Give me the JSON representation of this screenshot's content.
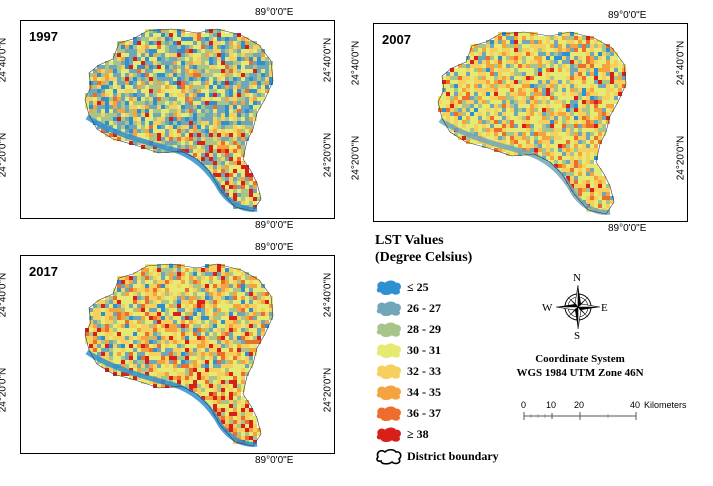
{
  "maps": [
    {
      "year": "1997",
      "lon_label": "89°0'0\"E",
      "lat_label_top": "24°40'0\"N",
      "lat_label_bottom": "24°20'0\"N"
    },
    {
      "year": "2007",
      "lon_label": "89°0'0\"E",
      "lat_label_top": "24°40'0\"N",
      "lat_label_bottom": "24°20'0\"N"
    },
    {
      "year": "2017",
      "lon_label": "89°0'0\"E",
      "lat_label_top": "24°40'0\"N",
      "lat_label_bottom": "24°20'0\"N"
    }
  ],
  "legend": {
    "title_line1": "LST Values",
    "title_line2": "(Degree Celsius)",
    "items": [
      {
        "label": "≤ 25",
        "color": "#2e8fd1"
      },
      {
        "label": "26 - 27",
        "color": "#6fa6b8"
      },
      {
        "label": "28 - 29",
        "color": "#a7c48b"
      },
      {
        "label": "30 - 31",
        "color": "#e6ea73"
      },
      {
        "label": "32 - 33",
        "color": "#f6cf5d"
      },
      {
        "label": "34 - 35",
        "color": "#f5a33e"
      },
      {
        "label": "36 - 37",
        "color": "#ef6d2c"
      },
      {
        "label": "≥ 38",
        "color": "#d91f1a"
      }
    ],
    "boundary_label": "District boundary"
  },
  "compass": {
    "n": "N",
    "s": "S",
    "e": "E",
    "w": "W",
    "icon": "compass-rose-icon"
  },
  "coordinate_system": {
    "line1": "Coordinate System",
    "line2": "WGS 1984 UTM Zone 46N"
  },
  "scale_bar": {
    "ticks": [
      "0",
      "10",
      "20",
      "40"
    ],
    "unit": "Kilometers"
  }
}
